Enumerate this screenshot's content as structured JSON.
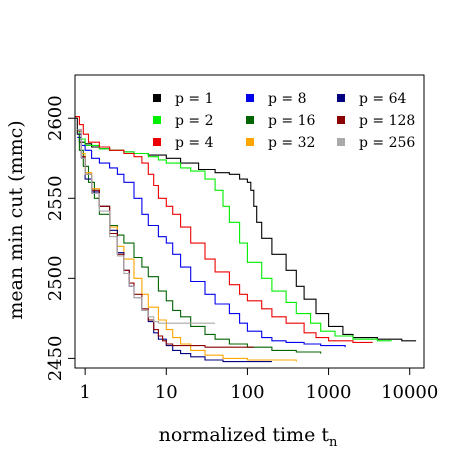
{
  "chart_data": {
    "type": "line",
    "title": "",
    "xlabel": "normalized time t",
    "xlabel_sub": "n",
    "ylabel": "mean min cut (mmc)",
    "xscale": "log",
    "xlim": [
      0.75,
      15000
    ],
    "ylim": [
      2444,
      2627
    ],
    "xticks": [
      1,
      10,
      100,
      1000,
      10000
    ],
    "xtick_labels": [
      "1",
      "10",
      "100",
      "1000",
      "10000"
    ],
    "yticks": [
      2450,
      2500,
      2550,
      2600
    ],
    "ytick_labels": [
      "2450",
      "2500",
      "2550",
      "2600"
    ],
    "legend_position": "top-right",
    "grid": false,
    "series": [
      {
        "name": "p = 1",
        "color": "#000000",
        "points": [
          [
            0.75,
            2600
          ],
          [
            0.8,
            2590
          ],
          [
            0.85,
            2585
          ],
          [
            1,
            2584
          ],
          [
            1.2,
            2582
          ],
          [
            1.5,
            2581
          ],
          [
            2,
            2580
          ],
          [
            3,
            2579
          ],
          [
            4,
            2578
          ],
          [
            6,
            2577
          ],
          [
            10,
            2575
          ],
          [
            15,
            2572
          ],
          [
            25,
            2568
          ],
          [
            40,
            2566
          ],
          [
            60,
            2565
          ],
          [
            80,
            2562
          ],
          [
            100,
            2560
          ],
          [
            110,
            2555
          ],
          [
            120,
            2545
          ],
          [
            130,
            2535
          ],
          [
            150,
            2525
          ],
          [
            200,
            2515
          ],
          [
            300,
            2505
          ],
          [
            400,
            2495
          ],
          [
            500,
            2487
          ],
          [
            700,
            2478
          ],
          [
            1000,
            2470
          ],
          [
            1500,
            2465
          ],
          [
            2000,
            2463
          ],
          [
            4000,
            2462
          ],
          [
            8000,
            2461
          ],
          [
            12000,
            2461
          ]
        ]
      },
      {
        "name": "p = 2",
        "color": "#00ee00",
        "points": [
          [
            0.8,
            2592
          ],
          [
            0.85,
            2587
          ],
          [
            1,
            2583
          ],
          [
            1.5,
            2581
          ],
          [
            2,
            2580
          ],
          [
            3,
            2579
          ],
          [
            4,
            2578
          ],
          [
            6,
            2576
          ],
          [
            8,
            2574
          ],
          [
            10,
            2572
          ],
          [
            15,
            2569
          ],
          [
            20,
            2567
          ],
          [
            30,
            2562
          ],
          [
            40,
            2555
          ],
          [
            50,
            2545
          ],
          [
            60,
            2535
          ],
          [
            80,
            2522
          ],
          [
            100,
            2510
          ],
          [
            150,
            2500
          ],
          [
            200,
            2492
          ],
          [
            300,
            2485
          ],
          [
            400,
            2478
          ],
          [
            600,
            2472
          ],
          [
            800,
            2467
          ],
          [
            1200,
            2464
          ],
          [
            2000,
            2462
          ],
          [
            4000,
            2461
          ],
          [
            6000,
            2461
          ]
        ]
      },
      {
        "name": "p = 4",
        "color": "#ee0000",
        "points": [
          [
            0.75,
            2601
          ],
          [
            0.85,
            2596
          ],
          [
            0.95,
            2590
          ],
          [
            1.1,
            2585
          ],
          [
            1.5,
            2582
          ],
          [
            2,
            2580
          ],
          [
            3,
            2578
          ],
          [
            4,
            2576
          ],
          [
            5,
            2572
          ],
          [
            6,
            2565
          ],
          [
            7,
            2558
          ],
          [
            8,
            2550
          ],
          [
            10,
            2545
          ],
          [
            12,
            2540
          ],
          [
            15,
            2532
          ],
          [
            20,
            2522
          ],
          [
            30,
            2512
          ],
          [
            40,
            2504
          ],
          [
            60,
            2496
          ],
          [
            80,
            2490
          ],
          [
            100,
            2486
          ],
          [
            150,
            2481
          ],
          [
            200,
            2476
          ],
          [
            300,
            2472
          ],
          [
            500,
            2466
          ],
          [
            700,
            2463
          ],
          [
            1000,
            2461
          ],
          [
            2000,
            2460
          ],
          [
            3500,
            2460
          ]
        ]
      },
      {
        "name": "p = 8",
        "color": "#0000ee",
        "points": [
          [
            0.8,
            2588
          ],
          [
            0.9,
            2583
          ],
          [
            1,
            2580
          ],
          [
            1.2,
            2575
          ],
          [
            1.5,
            2572
          ],
          [
            2,
            2569
          ],
          [
            2.5,
            2565
          ],
          [
            3,
            2560
          ],
          [
            4,
            2550
          ],
          [
            5,
            2540
          ],
          [
            6,
            2533
          ],
          [
            8,
            2526
          ],
          [
            10,
            2522
          ],
          [
            12,
            2515
          ],
          [
            15,
            2507
          ],
          [
            20,
            2498
          ],
          [
            30,
            2490
          ],
          [
            40,
            2484
          ],
          [
            60,
            2478
          ],
          [
            80,
            2472
          ],
          [
            100,
            2467
          ],
          [
            150,
            2463
          ],
          [
            200,
            2461
          ],
          [
            300,
            2460
          ],
          [
            500,
            2459
          ],
          [
            800,
            2458
          ],
          [
            1200,
            2458
          ],
          [
            1600,
            2457
          ]
        ]
      },
      {
        "name": "p = 16",
        "color": "#006400",
        "points": [
          [
            0.8,
            2590
          ],
          [
            0.85,
            2580
          ],
          [
            0.95,
            2570
          ],
          [
            1.1,
            2560
          ],
          [
            1.3,
            2550
          ],
          [
            1.5,
            2540
          ],
          [
            2,
            2533
          ],
          [
            2.5,
            2527
          ],
          [
            3,
            2522
          ],
          [
            4,
            2513
          ],
          [
            5,
            2507
          ],
          [
            6,
            2501
          ],
          [
            8,
            2492
          ],
          [
            10,
            2486
          ],
          [
            12,
            2480
          ],
          [
            15,
            2476
          ],
          [
            20,
            2470
          ],
          [
            30,
            2465
          ],
          [
            40,
            2462
          ],
          [
            60,
            2459
          ],
          [
            100,
            2457
          ],
          [
            200,
            2455
          ],
          [
            400,
            2454
          ],
          [
            800,
            2453
          ]
        ]
      },
      {
        "name": "p = 32",
        "color": "#ffa500",
        "points": [
          [
            0.8,
            2590
          ],
          [
            0.9,
            2578
          ],
          [
            1,
            2566
          ],
          [
            1.2,
            2556
          ],
          [
            1.5,
            2545
          ],
          [
            2,
            2532
          ],
          [
            2.5,
            2520
          ],
          [
            3,
            2512
          ],
          [
            4,
            2500
          ],
          [
            5,
            2490
          ],
          [
            6,
            2482
          ],
          [
            8,
            2474
          ],
          [
            10,
            2468
          ],
          [
            12,
            2463
          ],
          [
            15,
            2459
          ],
          [
            20,
            2455
          ],
          [
            30,
            2452
          ],
          [
            50,
            2450
          ],
          [
            100,
            2449
          ],
          [
            200,
            2449
          ],
          [
            400,
            2448
          ]
        ]
      },
      {
        "name": "p = 64",
        "color": "#000080",
        "points": [
          [
            0.8,
            2590
          ],
          [
            0.9,
            2575
          ],
          [
            1,
            2562
          ],
          [
            1.2,
            2554
          ],
          [
            1.5,
            2545
          ],
          [
            2,
            2530
          ],
          [
            2.5,
            2516
          ],
          [
            3,
            2505
          ],
          [
            3.5,
            2495
          ],
          [
            4,
            2488
          ],
          [
            5,
            2480
          ],
          [
            6,
            2473
          ],
          [
            7,
            2466
          ],
          [
            8,
            2462
          ],
          [
            10,
            2458
          ],
          [
            12,
            2455
          ],
          [
            15,
            2453
          ],
          [
            20,
            2451
          ],
          [
            30,
            2449
          ],
          [
            50,
            2448
          ],
          [
            100,
            2448
          ],
          [
            200,
            2448
          ]
        ]
      },
      {
        "name": "p = 128",
        "color": "#8b0000",
        "points": [
          [
            0.8,
            2592
          ],
          [
            0.9,
            2576
          ],
          [
            1,
            2565
          ],
          [
            1.2,
            2555
          ],
          [
            1.5,
            2545
          ],
          [
            2,
            2528
          ],
          [
            2.5,
            2515
          ],
          [
            3,
            2505
          ],
          [
            3.5,
            2497
          ],
          [
            4,
            2490
          ],
          [
            5,
            2481
          ],
          [
            6,
            2474
          ],
          [
            7,
            2468
          ],
          [
            8,
            2464
          ],
          [
            9,
            2461
          ],
          [
            10,
            2459
          ],
          [
            12,
            2458
          ],
          [
            15,
            2458
          ],
          [
            30,
            2457
          ],
          [
            60,
            2457
          ],
          [
            120,
            2457
          ]
        ]
      },
      {
        "name": "p = 256",
        "color": "#a9a9a9",
        "points": [
          [
            0.8,
            2593
          ],
          [
            0.9,
            2575
          ],
          [
            1,
            2565
          ],
          [
            1.2,
            2553
          ],
          [
            1.5,
            2542
          ],
          [
            2,
            2526
          ],
          [
            2.5,
            2514
          ],
          [
            3,
            2503
          ],
          [
            3.5,
            2495
          ],
          [
            4,
            2488
          ],
          [
            5,
            2480
          ],
          [
            6,
            2476
          ],
          [
            7,
            2473
          ],
          [
            8,
            2472
          ],
          [
            10,
            2472
          ],
          [
            15,
            2472
          ],
          [
            25,
            2472
          ],
          [
            40,
            2472
          ]
        ]
      }
    ]
  }
}
